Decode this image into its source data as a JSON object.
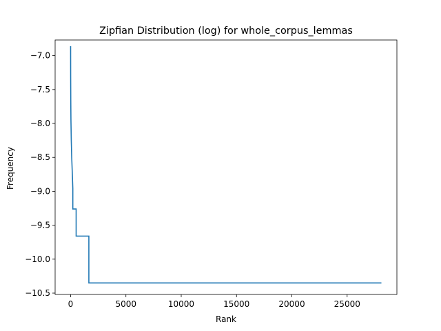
{
  "chart_data": {
    "type": "line",
    "title": "Zipfian Distribution (log) for whole_corpus_lemmas",
    "xlabel": "Rank",
    "ylabel": "Frequency",
    "xlim": [
      -1400,
      29500
    ],
    "ylim": [
      -10.52,
      -6.77
    ],
    "xticks": [
      0,
      5000,
      10000,
      15000,
      20000,
      25000
    ],
    "xtick_labels": [
      "0",
      "5000",
      "10000",
      "15000",
      "20000",
      "25000"
    ],
    "yticks": [
      -7.0,
      -7.5,
      -8.0,
      -8.5,
      -9.0,
      -9.5,
      -10.0,
      -10.5
    ],
    "ytick_labels": [
      "−7.0",
      "−7.5",
      "−8.0",
      "−8.5",
      "−9.0",
      "−9.5",
      "−10.0",
      "−10.5"
    ],
    "grid": false,
    "series": [
      {
        "color": "#1f77b4",
        "x": [
          0,
          5,
          15,
          30,
          60,
          100,
          150,
          200,
          200,
          500,
          500,
          1650,
          1650,
          28100
        ],
        "y": [
          -6.86,
          -7.3,
          -7.65,
          -7.95,
          -8.25,
          -8.5,
          -8.72,
          -8.96,
          -9.26,
          -9.26,
          -9.66,
          -9.66,
          -10.35,
          -10.35
        ]
      }
    ]
  }
}
